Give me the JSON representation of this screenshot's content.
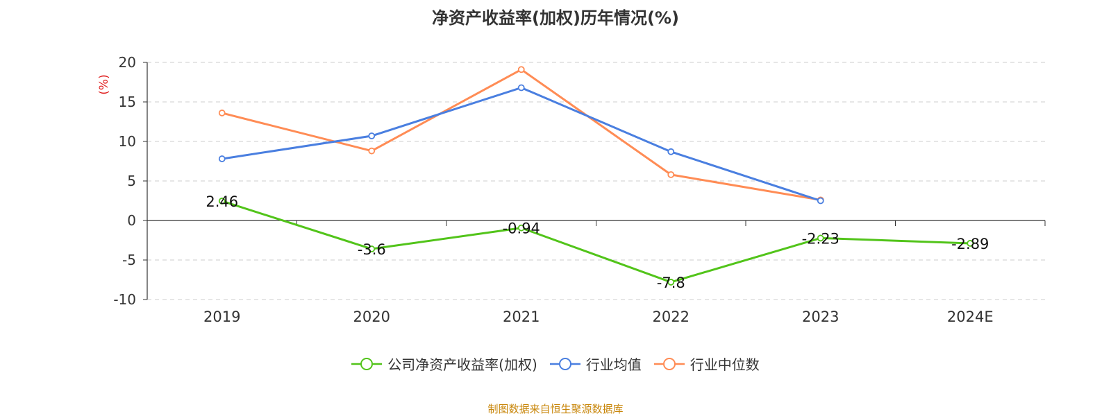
{
  "chart_data": {
    "type": "line",
    "title": "净资产收益率(加权)历年情况(%)",
    "ylabel": "(%)",
    "xlabel": "",
    "categories": [
      "2019",
      "2020",
      "2021",
      "2022",
      "2023",
      "2024E"
    ],
    "ylim": [
      -10,
      20
    ],
    "yticks": [
      20,
      15,
      10,
      5,
      0,
      -5,
      -10
    ],
    "grid": true,
    "legend_position": "bottom",
    "series": [
      {
        "name": "公司净资产收益率(加权)",
        "color": "#52c41a",
        "values": [
          2.46,
          -3.6,
          -0.94,
          -7.8,
          -2.23,
          -2.89
        ],
        "labels": [
          "2.46",
          "-3.6",
          "-0.94",
          "-7.8",
          "-2.23",
          "-2.89"
        ]
      },
      {
        "name": "行业均值",
        "color": "#4a7fe0",
        "values": [
          7.8,
          10.7,
          16.8,
          8.7,
          2.5,
          null
        ]
      },
      {
        "name": "行业中位数",
        "color": "#ff8c55",
        "values": [
          13.6,
          8.8,
          19.1,
          5.8,
          2.6,
          null
        ]
      }
    ],
    "source": "制图数据来自恒生聚源数据库"
  }
}
